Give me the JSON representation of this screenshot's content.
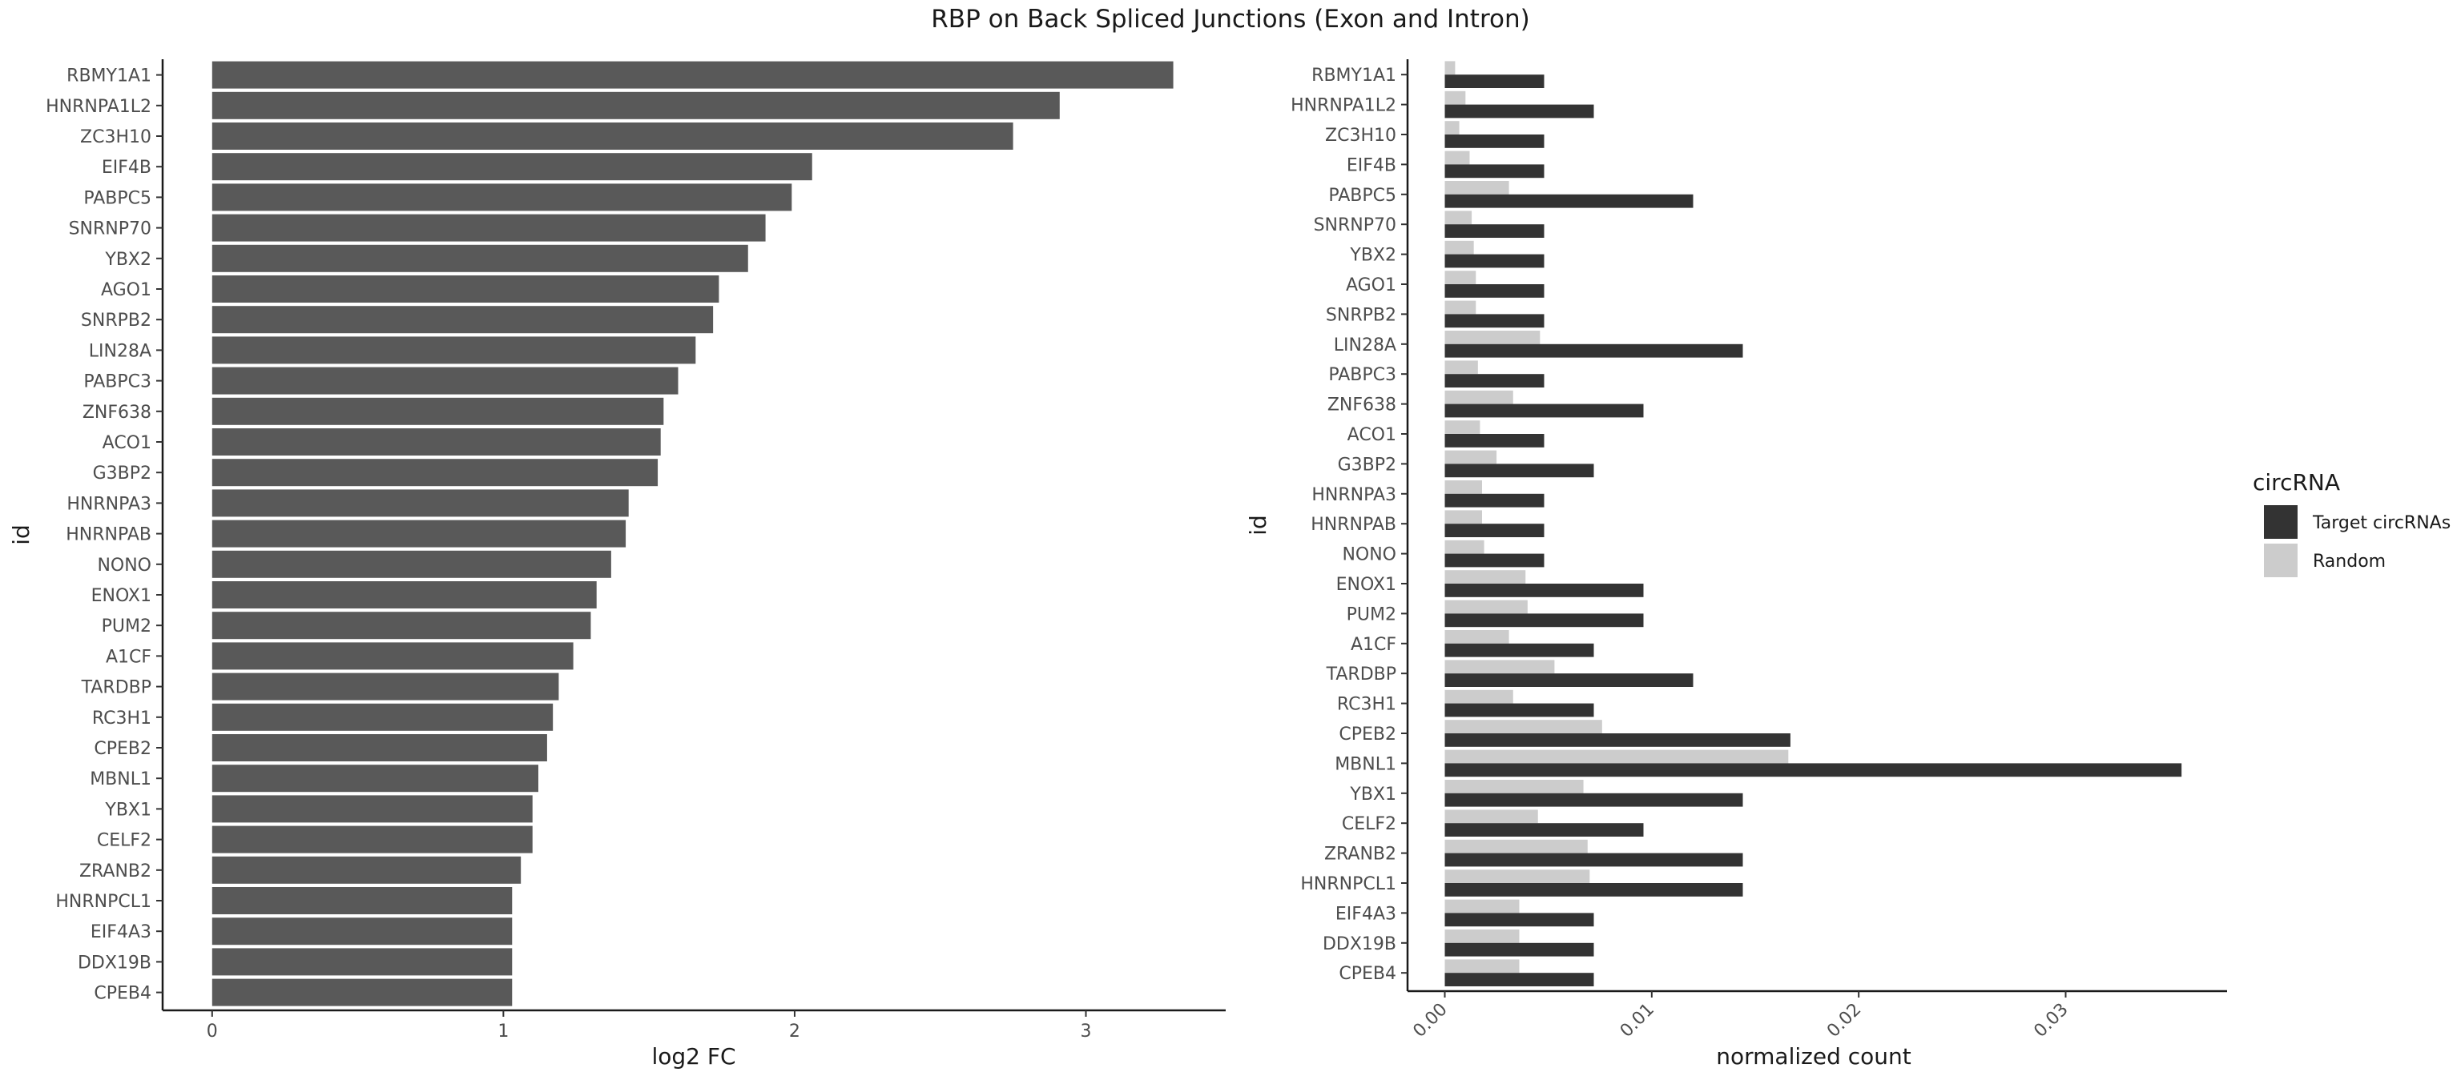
{
  "title": "RBP on Back Spliced Junctions (Exon and Intron)",
  "chart_data": [
    {
      "type": "bar",
      "orientation": "horizontal",
      "categories": [
        "RBMY1A1",
        "HNRNPA1L2",
        "ZC3H10",
        "EIF4B",
        "PABPC5",
        "SNRNP70",
        "YBX2",
        "AGO1",
        "SNRPB2",
        "LIN28A",
        "PABPC3",
        "ZNF638",
        "ACO1",
        "G3BP2",
        "HNRNPA3",
        "HNRNPAB",
        "NONO",
        "ENOX1",
        "PUM2",
        "A1CF",
        "TARDBP",
        "RC3H1",
        "CPEB2",
        "MBNL1",
        "YBX1",
        "CELF2",
        "ZRANB2",
        "HNRNPCL1",
        "EIF4A3",
        "DDX19B",
        "CPEB4"
      ],
      "values": [
        3.3,
        2.91,
        2.75,
        2.06,
        1.99,
        1.9,
        1.84,
        1.74,
        1.72,
        1.66,
        1.6,
        1.55,
        1.54,
        1.53,
        1.43,
        1.42,
        1.37,
        1.32,
        1.3,
        1.24,
        1.19,
        1.17,
        1.15,
        1.12,
        1.1,
        1.1,
        1.06,
        1.03,
        1.03,
        1.03,
        1.03
      ],
      "xlabel": "log2 FC",
      "ylabel": "id",
      "xticks": [
        "0",
        "1",
        "2",
        "3"
      ],
      "xlim": [
        -0.17,
        3.48
      ],
      "color": "#595959",
      "grid": false
    },
    {
      "type": "bar",
      "orientation": "horizontal",
      "grouped": true,
      "categories": [
        "RBMY1A1",
        "HNRNPA1L2",
        "ZC3H10",
        "EIF4B",
        "PABPC5",
        "SNRNP70",
        "YBX2",
        "AGO1",
        "SNRPB2",
        "LIN28A",
        "PABPC3",
        "ZNF638",
        "ACO1",
        "G3BP2",
        "HNRNPA3",
        "HNRNPAB",
        "NONO",
        "ENOX1",
        "PUM2",
        "A1CF",
        "TARDBP",
        "RC3H1",
        "CPEB2",
        "MBNL1",
        "YBX1",
        "CELF2",
        "ZRANB2",
        "HNRNPCL1",
        "EIF4A3",
        "DDX19B",
        "CPEB4"
      ],
      "series": [
        {
          "name": "Target circRNAs",
          "color": "#333333",
          "values": [
            0.0048,
            0.0072,
            0.0048,
            0.0048,
            0.012,
            0.0048,
            0.0048,
            0.0048,
            0.0048,
            0.0144,
            0.0048,
            0.0096,
            0.0048,
            0.0072,
            0.0048,
            0.0048,
            0.0048,
            0.0096,
            0.0096,
            0.0072,
            0.012,
            0.0072,
            0.0167,
            0.0356,
            0.0144,
            0.0096,
            0.0144,
            0.0144,
            0.0072,
            0.0072,
            0.0072
          ]
        },
        {
          "name": "Random",
          "color": "#cccccc",
          "values": [
            0.0005,
            0.001,
            0.0007,
            0.0012,
            0.0031,
            0.0013,
            0.0014,
            0.0015,
            0.0015,
            0.0046,
            0.0016,
            0.0033,
            0.0017,
            0.0025,
            0.0018,
            0.0018,
            0.0019,
            0.0039,
            0.004,
            0.0031,
            0.0053,
            0.0033,
            0.0076,
            0.0166,
            0.0067,
            0.0045,
            0.0069,
            0.007,
            0.0036,
            0.0036,
            0.0036
          ]
        }
      ],
      "xlabel": "normalized count",
      "ylabel": "id",
      "xticks": [
        "0.00",
        "0.01",
        "0.02",
        "0.03"
      ],
      "xlim": [
        -0.0018,
        0.0378
      ],
      "grid": false,
      "legend": {
        "title": "circRNA",
        "position": "right"
      }
    }
  ]
}
